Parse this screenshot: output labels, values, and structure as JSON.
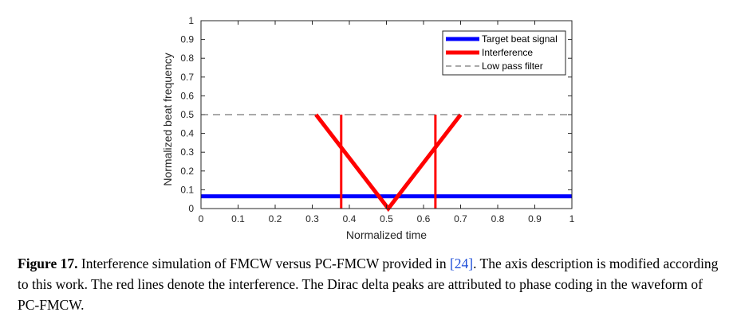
{
  "chart_data": {
    "type": "line",
    "title": "",
    "xlabel": "Normalized time",
    "ylabel": "Normalized beat frequency",
    "xlim": [
      0,
      1
    ],
    "ylim": [
      0,
      1
    ],
    "x_ticks": [
      0,
      0.1,
      0.2,
      0.3,
      0.4,
      0.5,
      0.6,
      0.7,
      0.8,
      0.9,
      1
    ],
    "y_ticks": [
      0,
      0.1,
      0.2,
      0.3,
      0.4,
      0.5,
      0.6,
      0.7,
      0.8,
      0.9,
      1
    ],
    "x_tick_labels": [
      "0",
      "0.1",
      "0.2",
      "0.3",
      "0.4",
      "0.5",
      "0.6",
      "0.7",
      "0.8",
      "0.9",
      "1"
    ],
    "y_tick_labels": [
      "0",
      "0.1",
      "0.2",
      "0.3",
      "0.4",
      "0.5",
      "0.6",
      "0.7",
      "0.8",
      "0.9",
      "1"
    ],
    "grid": false,
    "legend_position": "top-right",
    "series": [
      {
        "name": "Target beat signal",
        "color": "#0000ff",
        "style": "solid-thick",
        "x": [
          0,
          1
        ],
        "y": [
          0.065,
          0.065
        ]
      },
      {
        "name": "Interference",
        "color": "#ff0000",
        "style": "solid-thick",
        "x": [
          0.31,
          0.505,
          0.7
        ],
        "y": [
          0.5,
          0.0,
          0.5
        ],
        "spikes": [
          {
            "x": 0.378,
            "y0": 0.0,
            "y1": 0.5
          },
          {
            "x": 0.632,
            "y0": 0.0,
            "y1": 0.5
          }
        ]
      },
      {
        "name": "Low pass filter",
        "color": "#555555",
        "style": "dashed",
        "x": [
          0,
          1
        ],
        "y": [
          0.5,
          0.5
        ]
      }
    ]
  },
  "caption": {
    "label": "Figure 17.",
    "text_before_cite": " Interference simulation of FMCW versus PC-FMCW provided in ",
    "cite": "[24]",
    "text_after_cite": ". The axis description is modified according to this work. The red lines denote the interference. The Dirac delta peaks are attributed to phase coding in the waveform of PC-FMCW."
  }
}
